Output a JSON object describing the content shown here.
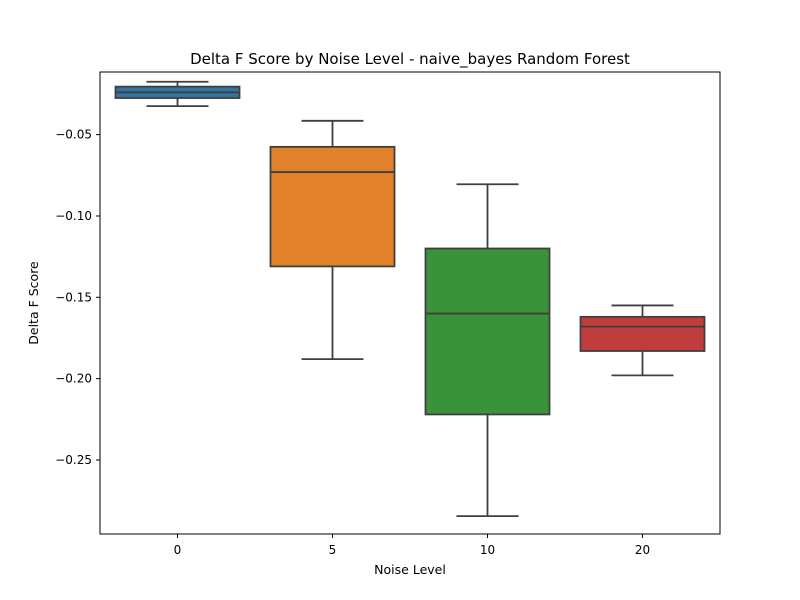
{
  "chart_data": {
    "type": "box",
    "title": "Delta F Score by Noise Level - naive_bayes Random Forest",
    "xlabel": "Noise Level",
    "ylabel": "Delta F Score",
    "categories": [
      "0",
      "5",
      "10",
      "20"
    ],
    "ylim": [
      -0.2955,
      -0.0115
    ],
    "yticks": [
      -0.05,
      -0.1,
      -0.15,
      -0.2,
      -0.25
    ],
    "ytick_labels": [
      "−0.05",
      "−0.10",
      "−0.15",
      "−0.20",
      "−0.25"
    ],
    "grid": false,
    "boxes": [
      {
        "category": "0",
        "whisker_low": -0.0325,
        "q1": -0.0275,
        "median": -0.024,
        "q3": -0.0205,
        "whisker_high": -0.0175,
        "color": "#3274a1"
      },
      {
        "category": "5",
        "whisker_low": -0.188,
        "q1": -0.131,
        "median": -0.073,
        "q3": -0.0575,
        "whisker_high": -0.0415,
        "color": "#e1812c"
      },
      {
        "category": "10",
        "whisker_low": -0.2845,
        "q1": -0.222,
        "median": -0.16,
        "q3": -0.12,
        "whisker_high": -0.0805,
        "color": "#3a923a"
      },
      {
        "category": "20",
        "whisker_low": -0.198,
        "q1": -0.183,
        "median": -0.168,
        "q3": -0.162,
        "whisker_high": -0.155,
        "color": "#c03d3e"
      }
    ]
  }
}
